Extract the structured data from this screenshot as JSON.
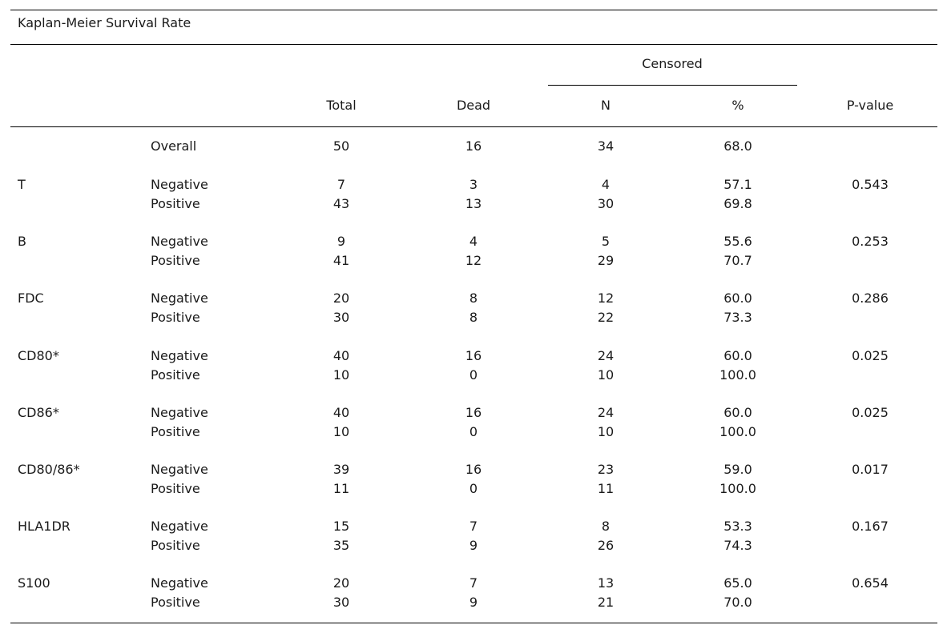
{
  "caption": "Kaplan-Meier Survival Rate",
  "header": {
    "censored": "Censored",
    "total": "Total",
    "dead": "Dead",
    "n": "N",
    "pct": "%",
    "p_value": "P-value"
  },
  "overall": {
    "label": "Overall",
    "total": "50",
    "dead": "16",
    "n": "34",
    "pct": "68.0"
  },
  "groups": [
    {
      "name": "T",
      "p_value": "0.543",
      "rows": [
        {
          "label": "Negative",
          "total": "7",
          "dead": "3",
          "n": "4",
          "pct": "57.1"
        },
        {
          "label": "Positive",
          "total": "43",
          "dead": "13",
          "n": "30",
          "pct": "69.8"
        }
      ]
    },
    {
      "name": "B",
      "p_value": "0.253",
      "rows": [
        {
          "label": "Negative",
          "total": "9",
          "dead": "4",
          "n": "5",
          "pct": "55.6"
        },
        {
          "label": "Positive",
          "total": "41",
          "dead": "12",
          "n": "29",
          "pct": "70.7"
        }
      ]
    },
    {
      "name": "FDC",
      "p_value": "0.286",
      "rows": [
        {
          "label": "Negative",
          "total": "20",
          "dead": "8",
          "n": "12",
          "pct": "60.0"
        },
        {
          "label": "Positive",
          "total": "30",
          "dead": "8",
          "n": "22",
          "pct": "73.3"
        }
      ]
    },
    {
      "name": "CD80*",
      "p_value": "0.025",
      "rows": [
        {
          "label": "Negative",
          "total": "40",
          "dead": "16",
          "n": "24",
          "pct": "60.0"
        },
        {
          "label": "Positive",
          "total": "10",
          "dead": "0",
          "n": "10",
          "pct": "100.0"
        }
      ]
    },
    {
      "name": "CD86*",
      "p_value": "0.025",
      "rows": [
        {
          "label": "Negative",
          "total": "40",
          "dead": "16",
          "n": "24",
          "pct": "60.0"
        },
        {
          "label": "Positive",
          "total": "10",
          "dead": "0",
          "n": "10",
          "pct": "100.0"
        }
      ]
    },
    {
      "name": "CD80/86*",
      "p_value": "0.017",
      "rows": [
        {
          "label": "Negative",
          "total": "39",
          "dead": "16",
          "n": "23",
          "pct": "59.0"
        },
        {
          "label": "Positive",
          "total": "11",
          "dead": "0",
          "n": "11",
          "pct": "100.0"
        }
      ]
    },
    {
      "name": "HLA1DR",
      "p_value": "0.167",
      "rows": [
        {
          "label": "Negative",
          "total": "15",
          "dead": "7",
          "n": "8",
          "pct": "53.3"
        },
        {
          "label": "Positive",
          "total": "35",
          "dead": "9",
          "n": "26",
          "pct": "74.3"
        }
      ]
    },
    {
      "name": "S100",
      "p_value": "0.654",
      "rows": [
        {
          "label": "Negative",
          "total": "20",
          "dead": "7",
          "n": "13",
          "pct": "65.0"
        },
        {
          "label": "Positive",
          "total": "30",
          "dead": "9",
          "n": "21",
          "pct": "70.0"
        }
      ]
    }
  ]
}
